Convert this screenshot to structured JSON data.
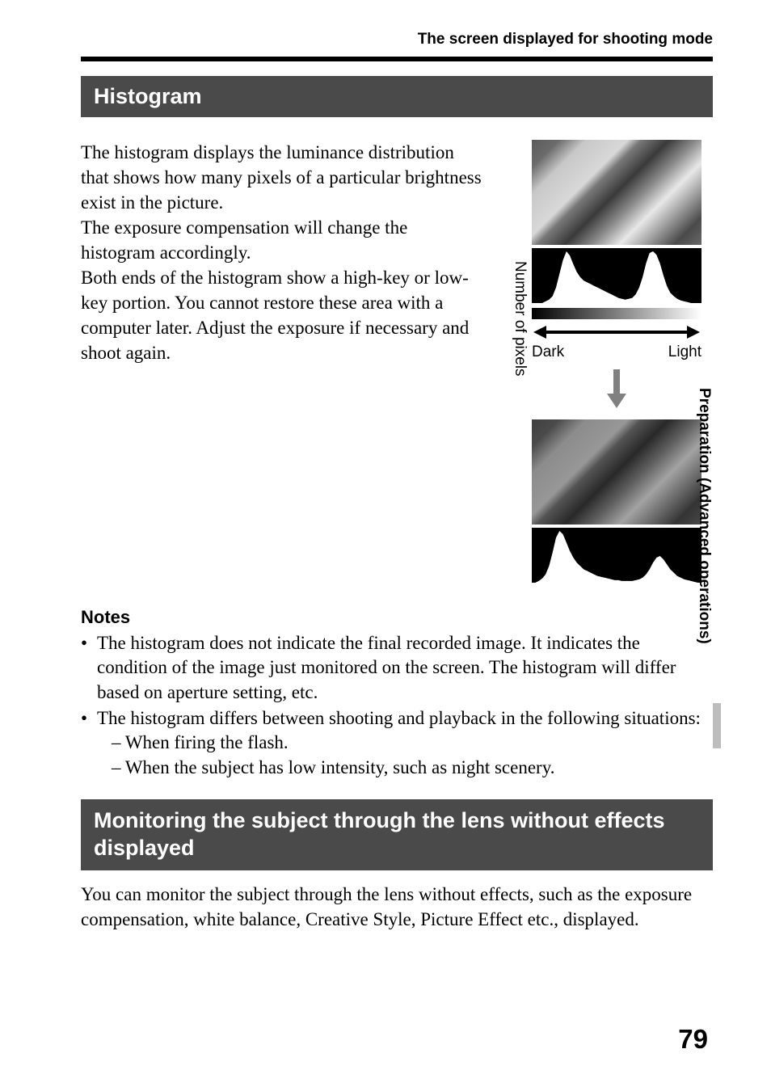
{
  "header": {
    "breadcrumb": "The screen displayed for shooting mode"
  },
  "section1": {
    "title": "Histogram",
    "body": "The histogram displays the luminance distribution that shows how many pixels of a particular brightness exist in the picture.\nThe exposure compensation will change the histogram accordingly.\nBoth ends of the histogram show a high-key or low-key portion. You cannot restore these area with a computer later. Adjust the exposure if necessary and shoot again."
  },
  "diagram": {
    "y_axis_label": "Number of pixels",
    "x_label_left": "Dark",
    "x_label_right": "Light",
    "histogram_top": {
      "type": "histogram",
      "background_color": "#000000",
      "fill_color": "#ffffff",
      "bins": [
        0,
        0,
        0,
        0,
        2,
        4,
        8,
        18,
        34,
        50,
        60,
        55,
        45,
        36,
        30,
        26,
        24,
        22,
        20,
        18,
        16,
        14,
        12,
        10,
        8,
        6,
        5,
        4,
        5,
        6,
        10,
        18,
        30,
        46,
        58,
        60,
        56,
        46,
        32,
        20,
        12,
        8,
        5,
        3,
        2,
        1,
        0,
        0,
        0,
        0
      ]
    },
    "histogram_bottom": {
      "type": "histogram",
      "background_color": "#000000",
      "fill_color": "#ffffff",
      "bins": [
        0,
        0,
        2,
        5,
        10,
        20,
        36,
        54,
        62,
        58,
        48,
        38,
        30,
        24,
        20,
        16,
        14,
        12,
        10,
        8,
        7,
        6,
        5,
        4,
        3,
        3,
        2,
        2,
        2,
        2,
        3,
        4,
        6,
        10,
        16,
        24,
        30,
        32,
        28,
        22,
        16,
        12,
        8,
        6,
        4,
        3,
        2,
        1,
        0,
        0
      ]
    },
    "gradient": {
      "from": "#000000",
      "to": "#ffffff"
    },
    "dbl_arrow_color": "#000000",
    "down_arrow_color": "#808080"
  },
  "notes": {
    "heading": "Notes",
    "items": [
      {
        "text": "The histogram does not indicate the final recorded image. It indicates the condition of the image just monitored on the screen. The histogram will differ based on aperture setting, etc."
      },
      {
        "text": "The histogram differs between shooting and playback in the following situations:",
        "sub": [
          "– When firing the flash.",
          "– When the subject has low intensity, such as night scenery."
        ]
      }
    ]
  },
  "section2": {
    "title": "Monitoring the subject through the lens without effects displayed",
    "body": "You can monitor the subject through the lens without effects, such as the exposure compensation, white balance, Creative Style, Picture Effect etc., displayed."
  },
  "side": {
    "tab_label": "Preparation (Advanced operations)"
  },
  "page": {
    "number": "79"
  }
}
